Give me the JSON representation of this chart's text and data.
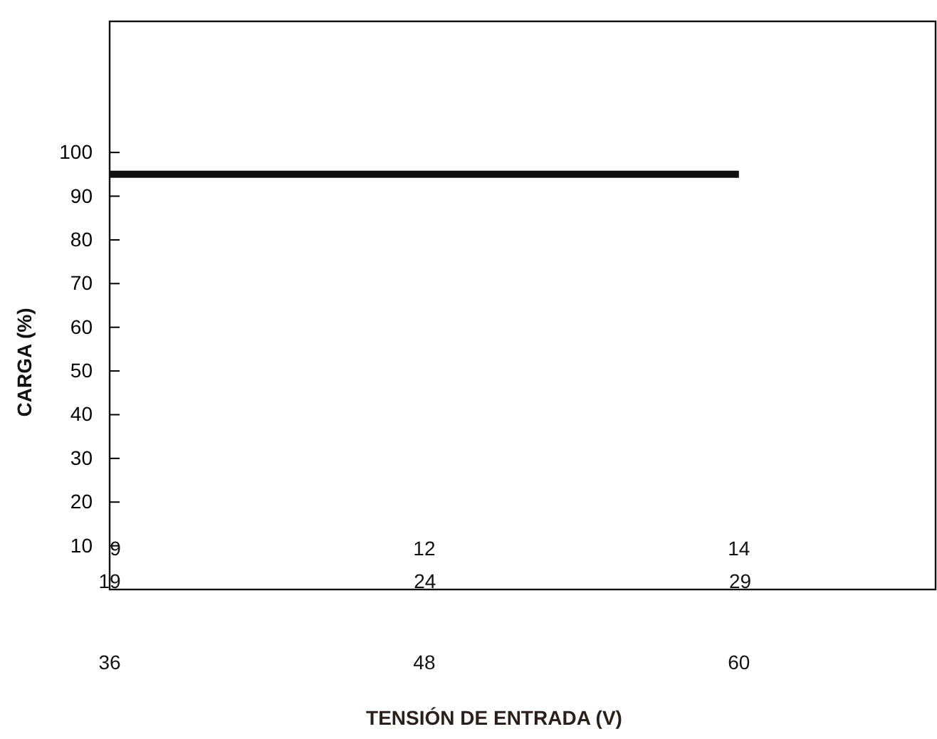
{
  "chart_data": {
    "type": "line",
    "xlabel": "TENSIÓN DE ENTRADA (V)",
    "ylabel": "CARGA (%)",
    "x": [
      36,
      60
    ],
    "series": [
      {
        "color": "#111111",
        "values": [
          95,
          95
        ]
      }
    ],
    "xlim": [
      36,
      67.5
    ],
    "xticks": [
      36,
      48,
      60
    ],
    "x2lim": [
      19,
      32.1
    ],
    "x2ticks": [
      19,
      24,
      29
    ],
    "annotations": [
      "9",
      "12",
      "14"
    ],
    "ylim": [
      0,
      130
    ],
    "yticks": [
      10,
      20,
      30,
      40,
      50,
      60,
      70,
      80,
      90,
      100
    ],
    "grid": false,
    "marker": "none",
    "line_style": "solid"
  }
}
